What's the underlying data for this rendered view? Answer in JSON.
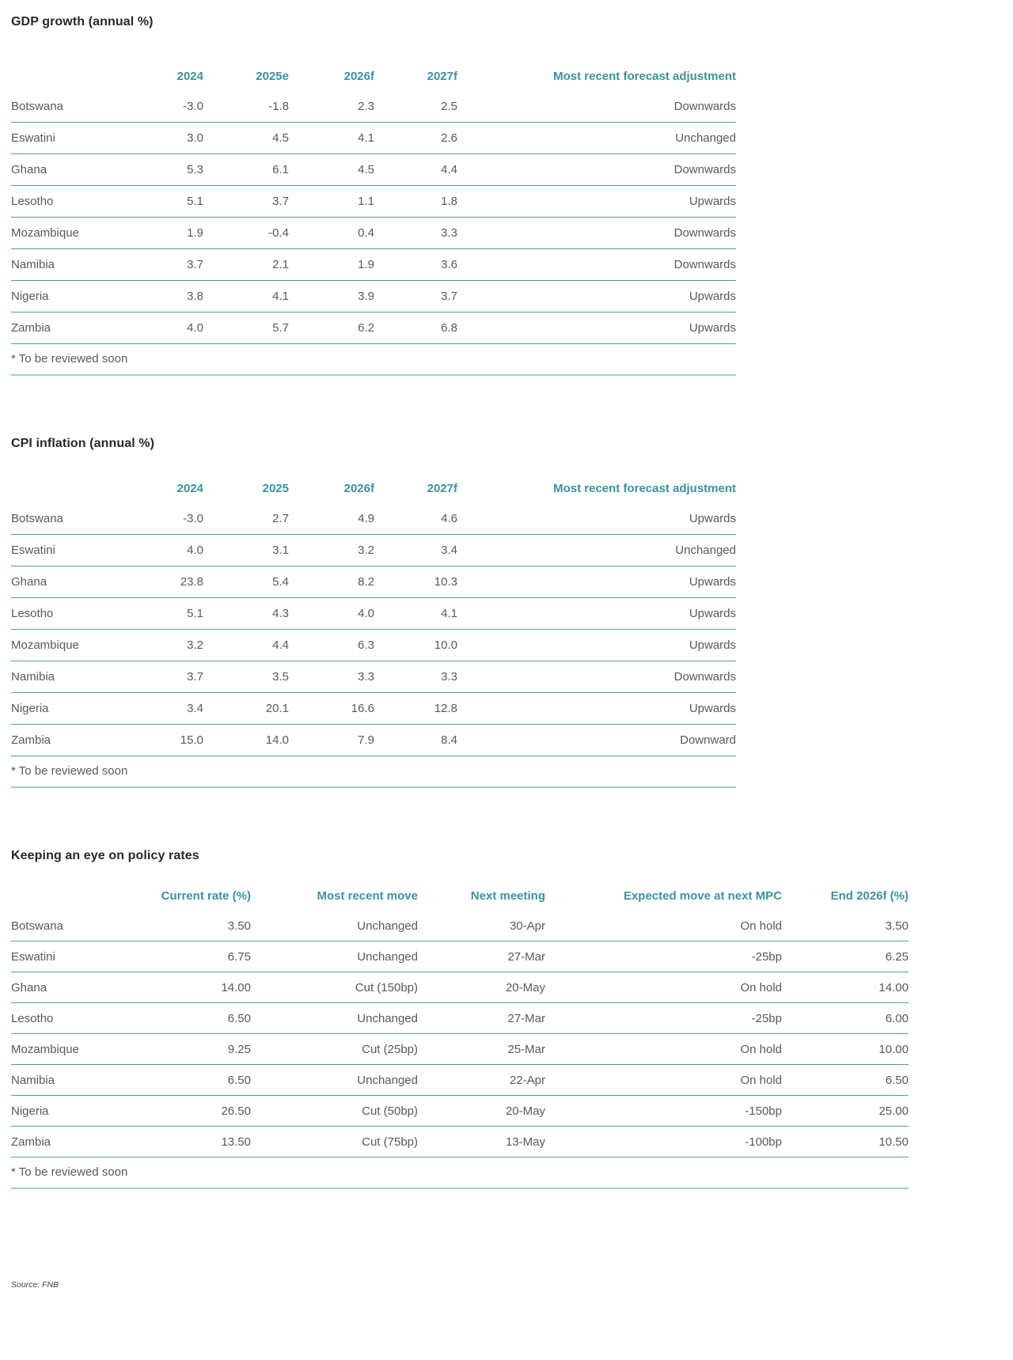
{
  "tables": [
    {
      "title": "GDP growth (annual %)",
      "columns": [
        "",
        "2024",
        "2025e",
        "2026f",
        "2027f",
        "Most recent forecast adjustment"
      ],
      "rows": [
        [
          "Botswana",
          "-3.0",
          "-1.8",
          "2.3",
          "2.5",
          "Downwards"
        ],
        [
          "Eswatini",
          "3.0",
          "4.5",
          "4.1",
          "2.6",
          "Unchanged"
        ],
        [
          "Ghana",
          "5.3",
          "6.1",
          "4.5",
          "4.4",
          "Downwards"
        ],
        [
          "Lesotho",
          "5.1",
          "3.7",
          "1.1",
          "1.8",
          "Upwards"
        ],
        [
          "Mozambique",
          "1.9",
          "-0.4",
          "0.4",
          "3.3",
          "Downwards"
        ],
        [
          "Namibia",
          "3.7",
          "2.1",
          "1.9",
          "3.6",
          "Downwards"
        ],
        [
          "Nigeria",
          "3.8",
          "4.1",
          "3.9",
          "3.7",
          "Upwards"
        ],
        [
          "Zambia",
          "4.0",
          "5.7",
          "6.2",
          "6.8",
          "Upwards"
        ]
      ],
      "footnote": "* To be reviewed soon"
    },
    {
      "title": "CPI inflation (annual %)",
      "columns": [
        "",
        "2024",
        "2025",
        "2026f",
        "2027f",
        "Most recent forecast adjustment"
      ],
      "rows": [
        [
          "Botswana",
          "-3.0",
          "2.7",
          "4.9",
          "4.6",
          "Upwards"
        ],
        [
          "Eswatini",
          "4.0",
          "3.1",
          "3.2",
          "3.4",
          "Unchanged"
        ],
        [
          "Ghana",
          "23.8",
          "5.4",
          "8.2",
          "10.3",
          "Upwards"
        ],
        [
          "Lesotho",
          "5.1",
          "4.3",
          "4.0",
          "4.1",
          "Upwards"
        ],
        [
          "Mozambique",
          "3.2",
          "4.4",
          "6.3",
          "10.0",
          "Upwards"
        ],
        [
          "Namibia",
          "3.7",
          "3.5",
          "3.3",
          "3.3",
          "Downwards"
        ],
        [
          "Nigeria",
          "3.4",
          "20.1",
          "16.6",
          "12.8",
          "Upwards"
        ],
        [
          "Zambia",
          "15.0",
          "14.0",
          "7.9",
          "8.4",
          "Downward"
        ]
      ],
      "footnote": "* To be reviewed soon"
    },
    {
      "title": "Keeping an eye on policy rates",
      "columns": [
        "",
        "Current rate (%)",
        "Most recent move",
        "Next meeting",
        "Expected move at next MPC",
        "End 2026f (%)"
      ],
      "rows": [
        [
          "Botswana",
          "3.50",
          "Unchanged",
          "30-Apr",
          "On hold",
          "3.50"
        ],
        [
          "Eswatini",
          "6.75",
          "Unchanged",
          "27-Mar",
          "-25bp",
          "6.25"
        ],
        [
          "Ghana",
          "14.00",
          "Cut (150bp)",
          "20-May",
          "On hold",
          "14.00"
        ],
        [
          "Lesotho",
          "6.50",
          "Unchanged",
          "27-Mar",
          "-25bp",
          "6.00"
        ],
        [
          "Mozambique",
          "9.25",
          "Cut (25bp)",
          "25-Mar",
          "On hold",
          "10.00"
        ],
        [
          "Namibia",
          "6.50",
          "Unchanged",
          "22-Apr",
          "On hold",
          "6.50"
        ],
        [
          "Nigeria",
          "26.50",
          "Cut (50bp)",
          "20-May",
          "-150bp",
          "25.00"
        ],
        [
          "Zambia",
          "13.50",
          "Cut (75bp)",
          "13-May",
          "-100bp",
          "10.50"
        ]
      ],
      "footnote": "* To be reviewed soon"
    }
  ],
  "source": "Source: FNB",
  "colors": {
    "accent_teal": "#3a949d",
    "row_line": "#4aa0a8",
    "footnote_line": "#9bced3",
    "title_text": "#282828",
    "body_text": "#595959"
  }
}
